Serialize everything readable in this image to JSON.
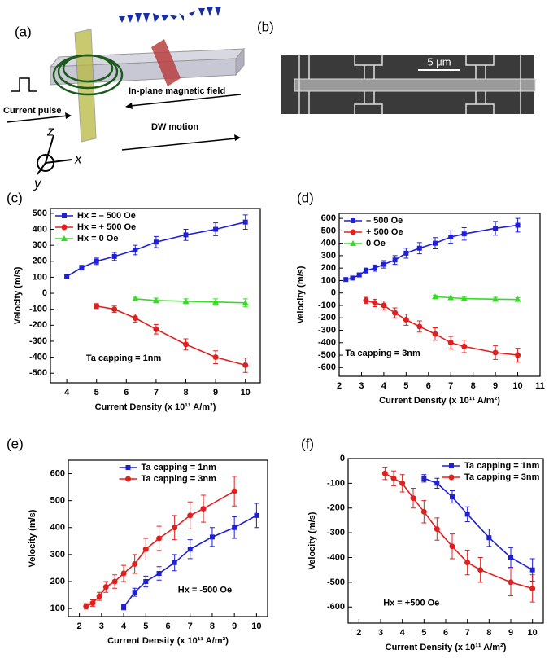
{
  "figure_a": {
    "label": "(a)",
    "current_pulse": "Current pulse",
    "field": "In-plane magnetic field",
    "motion": "DW motion",
    "axis_z": "z",
    "axis_x": "x",
    "axis_y": "y"
  },
  "figure_b": {
    "label": "(b)",
    "scale": "5 μm"
  },
  "chart_data": [
    {
      "type": "line",
      "label": "(c)",
      "annotation": "Ta capping = 1nm",
      "x_label": "Current Density (x 10¹¹ A/m²)",
      "y_label": "Velocity (m/s)",
      "xlim": [
        3.45,
        10.5
      ],
      "ylim": [
        -560,
        530
      ],
      "xticks": [
        4,
        5,
        6,
        7,
        8,
        9,
        10
      ],
      "yticks": [
        -500,
        -400,
        -300,
        -200,
        -100,
        0,
        100,
        200,
        300,
        400,
        500
      ],
      "legend": "upper left",
      "series": [
        {
          "name": "Hx = – 500 Oe",
          "color": "#1f1fd6",
          "marker": "square",
          "x": [
            4,
            4.5,
            5,
            5.6,
            6.3,
            7,
            8,
            9,
            10
          ],
          "values": [
            105,
            160,
            200,
            230,
            270,
            320,
            365,
            400,
            445
          ],
          "errors": [
            10,
            15,
            20,
            25,
            30,
            35,
            35,
            40,
            45
          ]
        },
        {
          "name": "Hx = + 500 Oe",
          "color": "#e0201f",
          "marker": "circle",
          "x": [
            5,
            5.6,
            6.3,
            7,
            8,
            9,
            10
          ],
          "values": [
            -80,
            -100,
            -155,
            -225,
            -320,
            -400,
            -450
          ],
          "errors": [
            15,
            20,
            25,
            30,
            35,
            40,
            45
          ]
        },
        {
          "name": "Hx = 0 Oe",
          "color": "#33dd22",
          "marker": "triangle",
          "x": [
            6.3,
            7,
            8,
            9,
            10
          ],
          "values": [
            -35,
            -45,
            -50,
            -55,
            -60
          ],
          "errors": [
            10,
            15,
            15,
            20,
            25
          ]
        }
      ]
    },
    {
      "type": "line",
      "label": "(d)",
      "annotation": "Ta capping = 3nm",
      "x_label": "Current Density (x 10¹¹ A/m²)",
      "y_label": "Velocity (m/s)",
      "xlim": [
        2,
        11
      ],
      "ylim": [
        -670,
        640
      ],
      "xticks": [
        2,
        3,
        4,
        5,
        6,
        7,
        8,
        9,
        10,
        11
      ],
      "yticks": [
        -600,
        -500,
        -400,
        -300,
        -200,
        -100,
        0,
        100,
        200,
        300,
        400,
        500,
        600
      ],
      "legend": "upper left",
      "series": [
        {
          "name": "– 500 Oe",
          "color": "#1f1fd6",
          "marker": "square",
          "x": [
            2.3,
            2.6,
            2.9,
            3.2,
            3.6,
            4,
            4.5,
            5,
            5.6,
            6.3,
            7,
            7.6,
            9,
            10
          ],
          "values": [
            108,
            120,
            145,
            180,
            200,
            230,
            265,
            320,
            360,
            400,
            450,
            475,
            520,
            545
          ],
          "errors": [
            10,
            12,
            15,
            20,
            25,
            30,
            35,
            40,
            45,
            45,
            50,
            50,
            55,
            55
          ]
        },
        {
          "name": "+ 500 Oe",
          "color": "#e0201f",
          "marker": "circle",
          "x": [
            3.2,
            3.6,
            4,
            4.5,
            5,
            5.6,
            6.3,
            7,
            7.6,
            9,
            10
          ],
          "values": [
            -60,
            -80,
            -100,
            -160,
            -215,
            -270,
            -330,
            -400,
            -430,
            -480,
            -500
          ],
          "errors": [
            25,
            30,
            35,
            40,
            45,
            45,
            50,
            50,
            50,
            55,
            55
          ]
        },
        {
          "name": "0 Oe",
          "color": "#33dd22",
          "marker": "triangle",
          "x": [
            6.3,
            7,
            7.6,
            9,
            10
          ],
          "values": [
            -30,
            -38,
            -45,
            -50,
            -52
          ],
          "errors": [
            10,
            12,
            12,
            15,
            15
          ]
        }
      ]
    },
    {
      "type": "line",
      "label": "(e)",
      "annotation": "Hx = -500 Oe",
      "x_label": "Current Density (x 10¹¹ A/m²)",
      "y_label": "Velocity (m/s)",
      "xlim": [
        1.5,
        10.5
      ],
      "ylim": [
        70,
        650
      ],
      "xticks": [
        2,
        3,
        4,
        5,
        6,
        7,
        8,
        9,
        10
      ],
      "yticks": [
        100,
        200,
        300,
        400,
        500,
        600
      ],
      "legend": "upper center",
      "series": [
        {
          "name": "Ta capping  = 1nm",
          "color": "#1f1fd6",
          "marker": "square",
          "x": [
            4,
            4.5,
            5,
            5.6,
            6.3,
            7,
            8,
            9,
            10
          ],
          "values": [
            105,
            160,
            200,
            230,
            270,
            320,
            365,
            400,
            445
          ],
          "errors": [
            10,
            15,
            20,
            25,
            30,
            35,
            35,
            40,
            45
          ]
        },
        {
          "name": "Ta capping  = 3nm",
          "color": "#e0201f",
          "marker": "circle",
          "x": [
            2.3,
            2.6,
            2.9,
            3.2,
            3.6,
            4,
            4.5,
            5,
            5.6,
            6.3,
            7,
            7.6,
            9
          ],
          "values": [
            108,
            120,
            145,
            180,
            200,
            230,
            265,
            320,
            360,
            400,
            445,
            470,
            535
          ],
          "errors": [
            10,
            12,
            15,
            20,
            25,
            30,
            35,
            40,
            45,
            45,
            50,
            50,
            55
          ]
        }
      ]
    },
    {
      "type": "line",
      "label": "(f)",
      "annotation": "Hx = +500 Oe",
      "x_label": "Current Density (x 10¹¹ A/m²)",
      "y_label": "Velocity (m/s)",
      "xlim": [
        1.5,
        10.5
      ],
      "ylim": [
        -665,
        0
      ],
      "xticks": [
        2,
        3,
        4,
        5,
        6,
        7,
        8,
        9,
        10
      ],
      "yticks": [
        -600,
        -500,
        -400,
        -300,
        -200,
        -100,
        0
      ],
      "legend": "upper right",
      "series": [
        {
          "name": "Ta capping = 1nm",
          "color": "#1f1fd6",
          "marker": "square",
          "x": [
            5,
            5.6,
            6.3,
            7,
            8,
            9,
            10
          ],
          "values": [
            -80,
            -100,
            -155,
            -225,
            -320,
            -400,
            -450
          ],
          "errors": [
            15,
            20,
            25,
            30,
            35,
            40,
            45
          ]
        },
        {
          "name": "Ta capping = 3nm",
          "color": "#e0201f",
          "marker": "circle",
          "x": [
            3.2,
            3.6,
            4,
            4.5,
            5,
            5.6,
            6.3,
            7,
            7.6,
            9,
            10
          ],
          "values": [
            -60,
            -80,
            -100,
            -160,
            -215,
            -285,
            -355,
            -420,
            -450,
            -500,
            -525
          ],
          "errors": [
            25,
            30,
            35,
            40,
            45,
            45,
            50,
            50,
            50,
            55,
            55
          ]
        }
      ]
    }
  ]
}
